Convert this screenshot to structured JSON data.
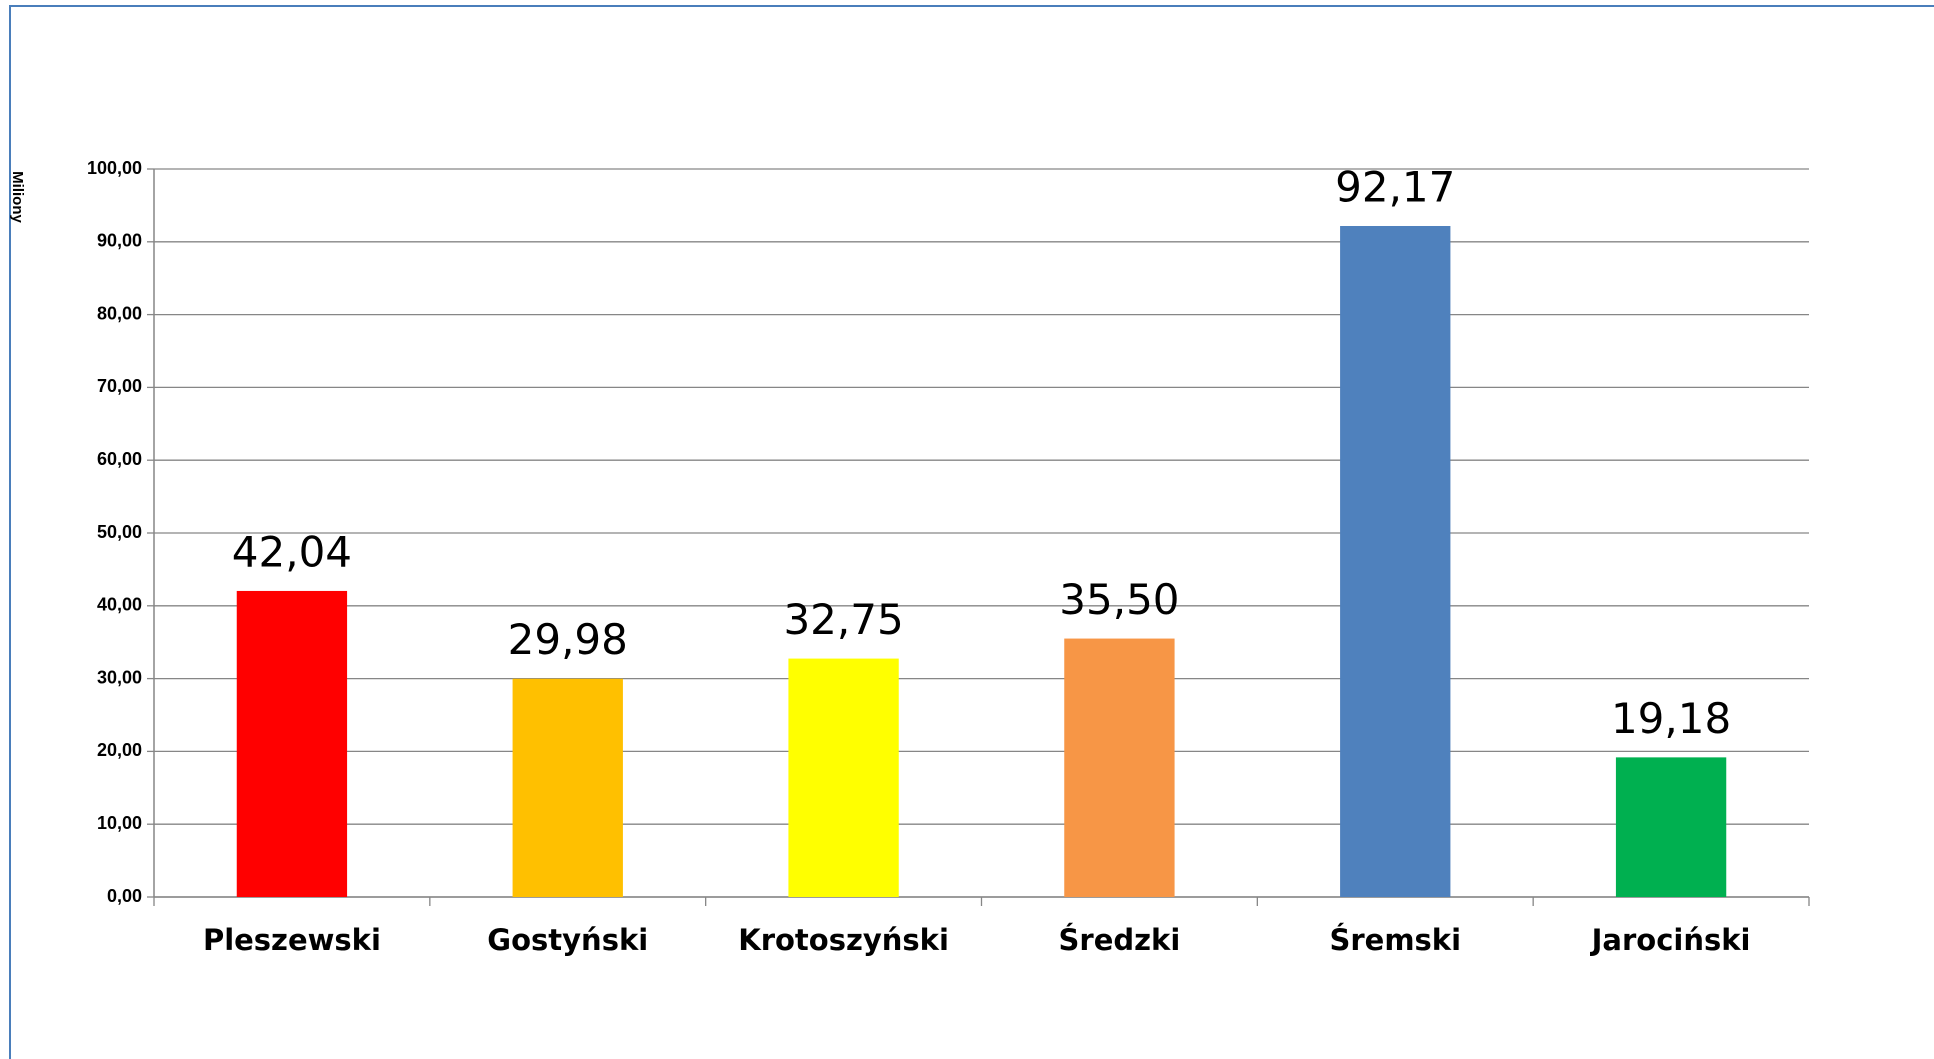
{
  "chart_data": {
    "type": "bar",
    "y_axis_label": "Miliony",
    "categories": [
      "Pleszewski",
      "Gostyński",
      "Krotoszyński",
      "Średzki",
      "Śremski",
      "Jarociński"
    ],
    "values": [
      42.04,
      29.98,
      32.75,
      35.5,
      92.17,
      19.18
    ],
    "value_labels": [
      "42,04",
      "29,98",
      "32,75",
      "35,50",
      "92,17",
      "19,18"
    ],
    "colors": [
      "#ff0000",
      "#ffc000",
      "#ffff00",
      "#f79646",
      "#4f81bd",
      "#00b050"
    ],
    "ylim": [
      0,
      100
    ],
    "yticks": [
      {
        "value": 0,
        "label": "0,00"
      },
      {
        "value": 10,
        "label": "10,00"
      },
      {
        "value": 20,
        "label": "20,00"
      },
      {
        "value": 30,
        "label": "30,00"
      },
      {
        "value": 40,
        "label": "40,00"
      },
      {
        "value": 50,
        "label": "50,00"
      },
      {
        "value": 60,
        "label": "60,00"
      },
      {
        "value": 70,
        "label": "70,00"
      },
      {
        "value": 80,
        "label": "80,00"
      },
      {
        "value": 90,
        "label": "90,00"
      },
      {
        "value": 100,
        "label": "100,00"
      }
    ],
    "grid": true
  }
}
